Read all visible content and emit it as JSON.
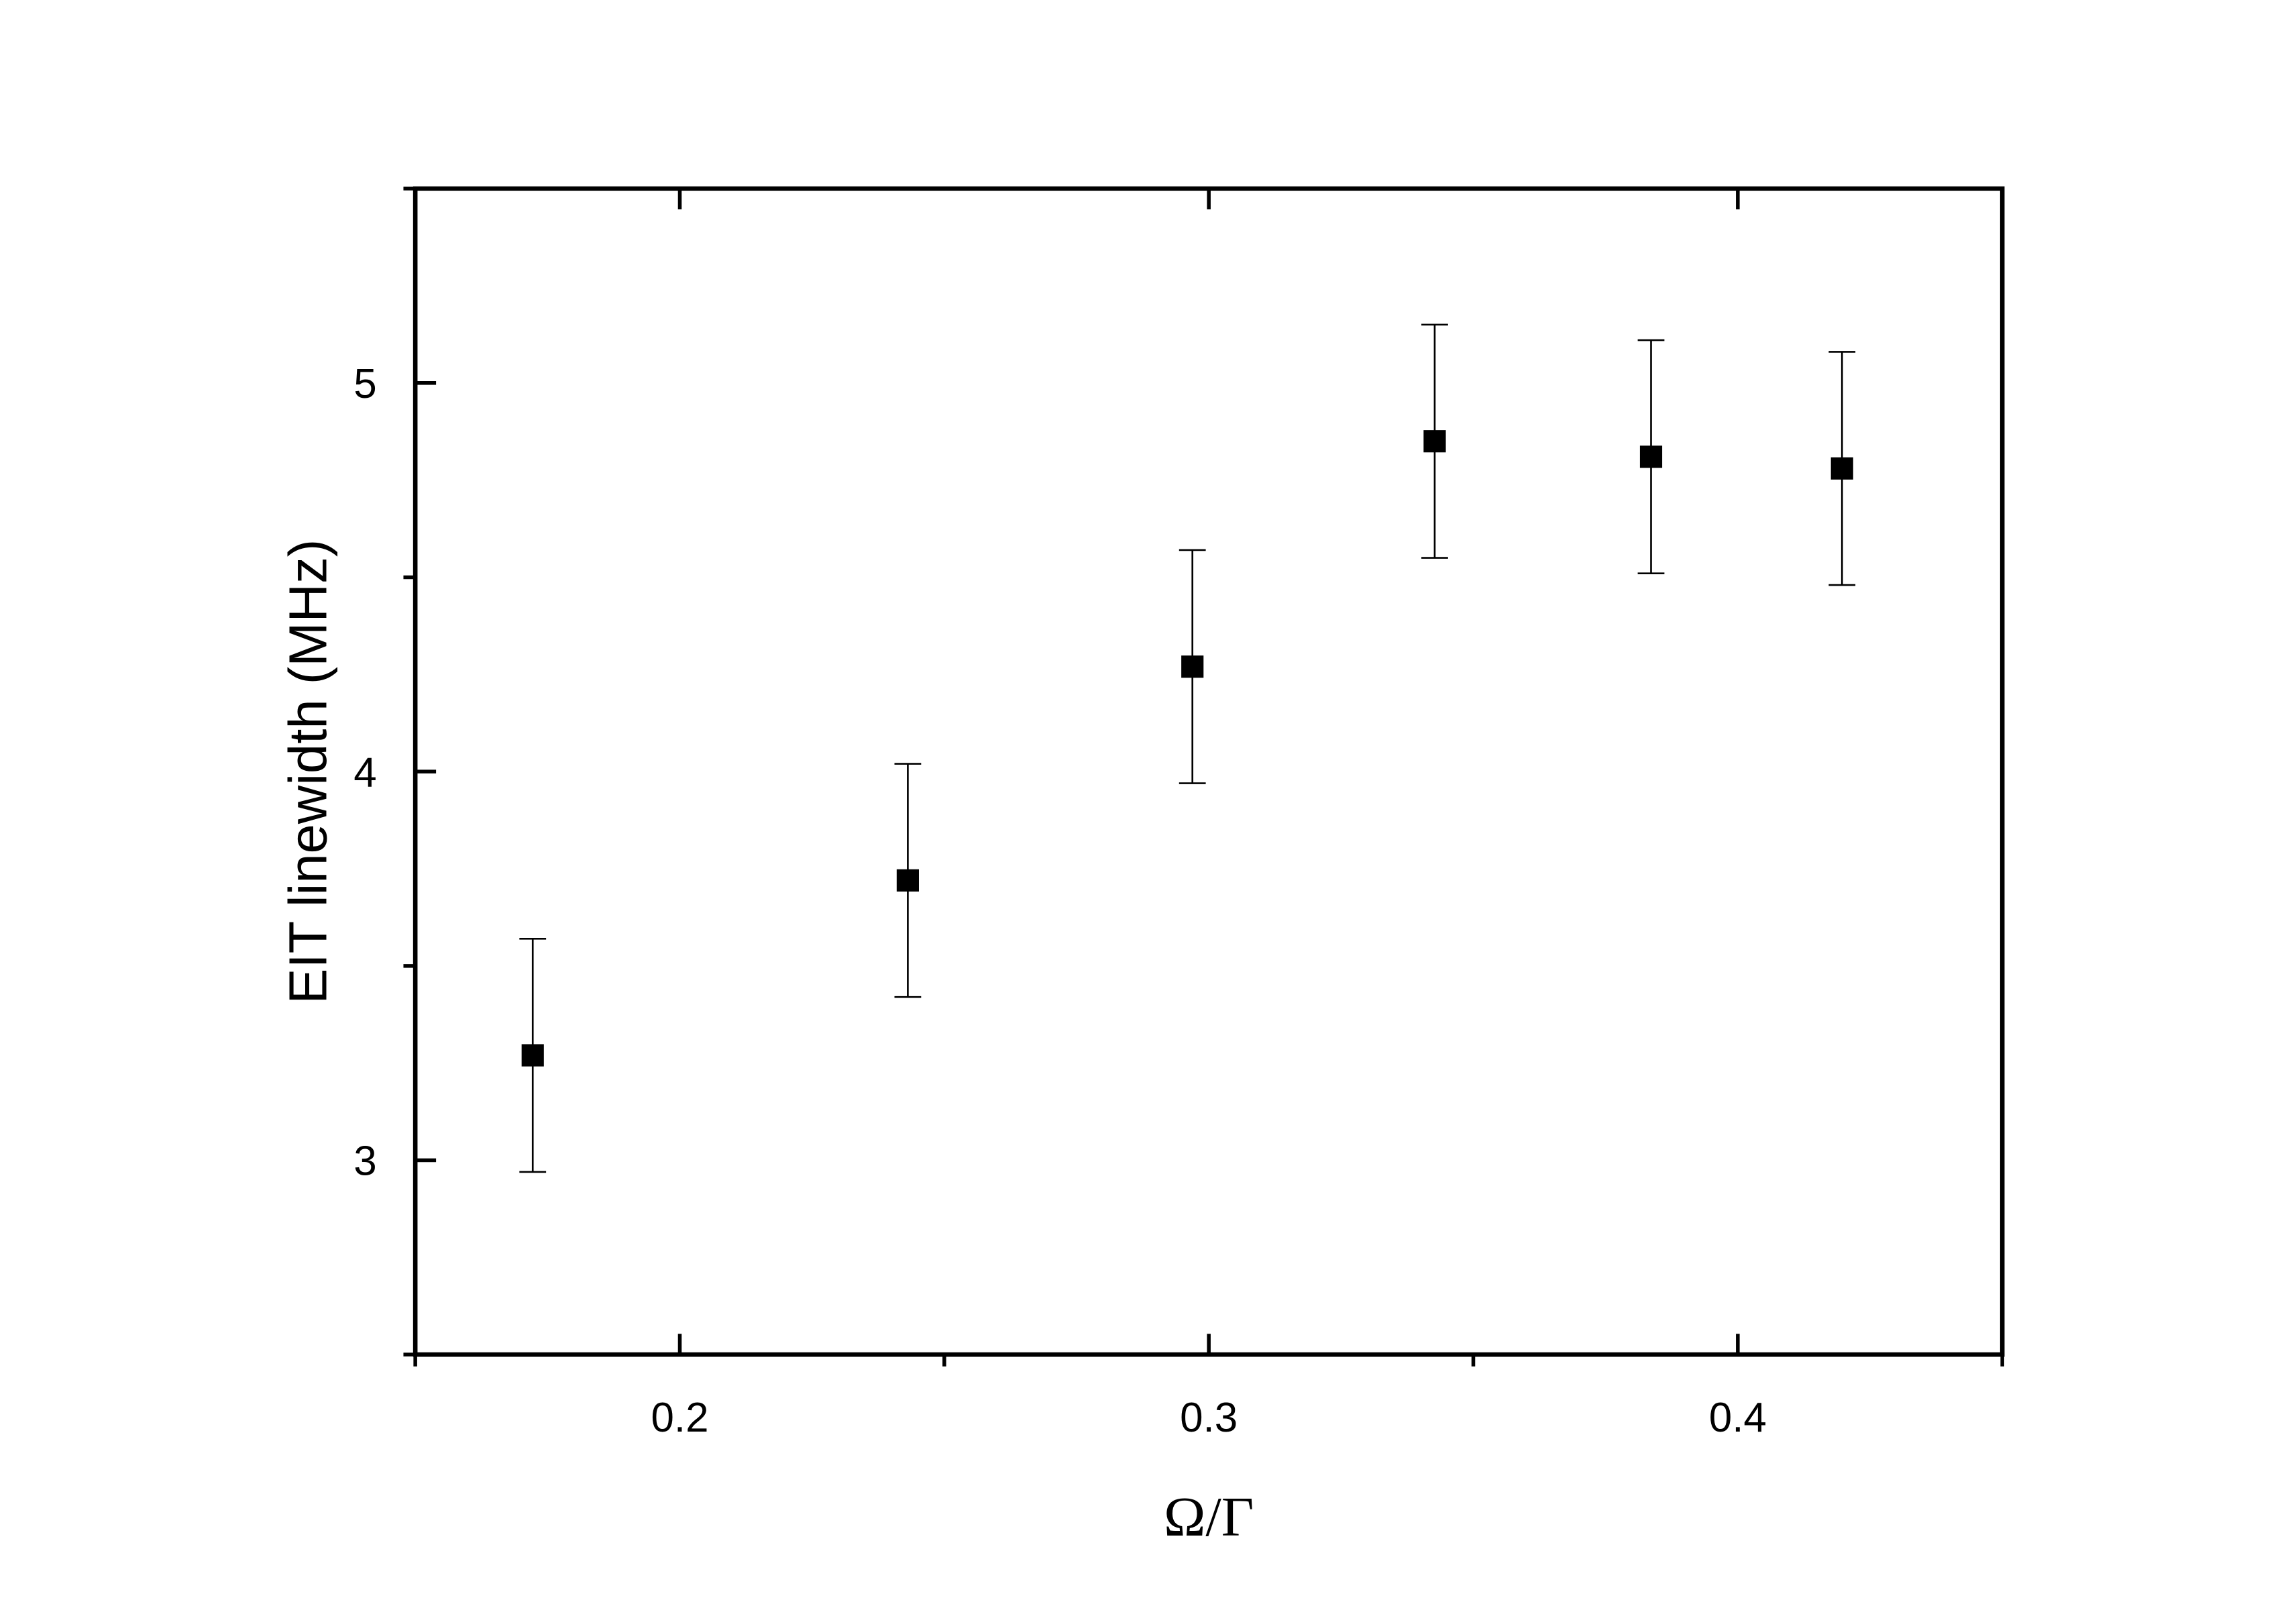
{
  "chart_data": {
    "type": "scatter",
    "x_label": "Ω/Γ",
    "y_label": "EIT linewidth (MHz)",
    "x": [
      0.1722,
      0.2431,
      0.2969,
      0.3427,
      0.3836,
      0.4197
    ],
    "series": [
      {
        "color": "#000000",
        "values": [
          3.27,
          3.72,
          4.27,
          4.85,
          4.81,
          4.78
        ],
        "errors": [
          0.3,
          0.3,
          0.3,
          0.3,
          0.3,
          0.3
        ]
      }
    ],
    "xlim": [
      0.15,
      0.45
    ],
    "xticks": [
      0.2,
      0.3,
      0.4
    ],
    "xminorticks": [
      0.15,
      0.25,
      0.35,
      0.45
    ],
    "ylim": [
      2.5,
      5.5
    ],
    "yticks": [
      3,
      4,
      5
    ],
    "yminorticks": [
      2.5,
      3.5,
      4.5,
      5.5
    ]
  }
}
